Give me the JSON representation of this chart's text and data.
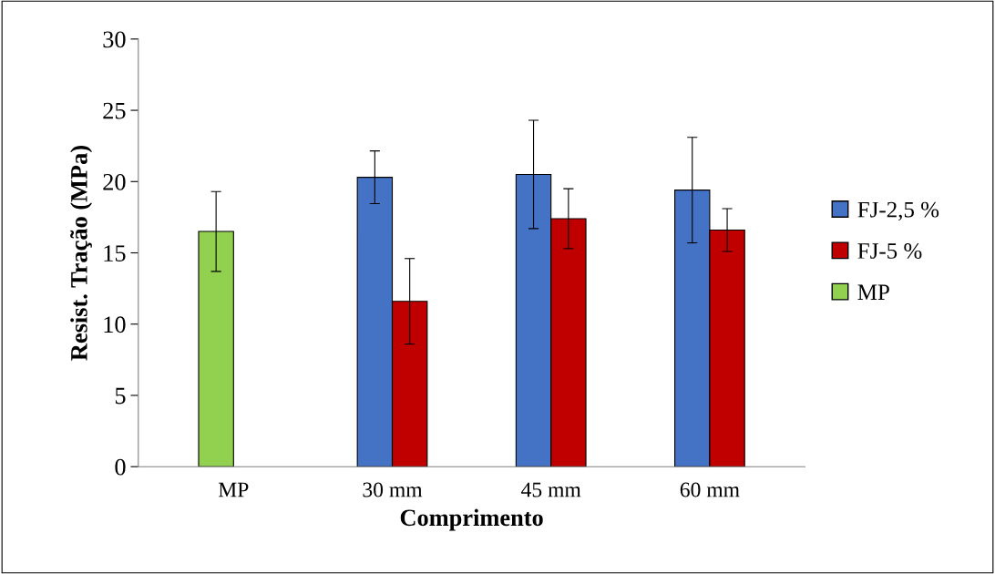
{
  "chart_data": {
    "type": "bar",
    "xlabel": "Comprimento",
    "ylabel": "Resist. Tração (MPa)",
    "categories": [
      "MP",
      "30 mm",
      "45 mm",
      "60 mm"
    ],
    "series": [
      {
        "name": "FJ-2,5 %",
        "color": "#4472c4",
        "values": [
          null,
          20.3,
          20.5,
          19.4
        ],
        "errors": [
          null,
          1.85,
          3.8,
          3.7
        ]
      },
      {
        "name": "FJ-5 %",
        "color": "#c00000",
        "values": [
          null,
          11.6,
          17.4,
          16.6
        ],
        "errors": [
          null,
          3.0,
          2.1,
          1.5
        ]
      },
      {
        "name": "MP",
        "color": "#92d050",
        "values": [
          16.5,
          null,
          null,
          null
        ],
        "errors": [
          2.8,
          null,
          null,
          null
        ]
      }
    ],
    "ylim": [
      0,
      30
    ],
    "yticks": [
      0,
      5,
      10,
      15,
      20,
      25,
      30
    ],
    "grid": false,
    "legend": "right"
  }
}
